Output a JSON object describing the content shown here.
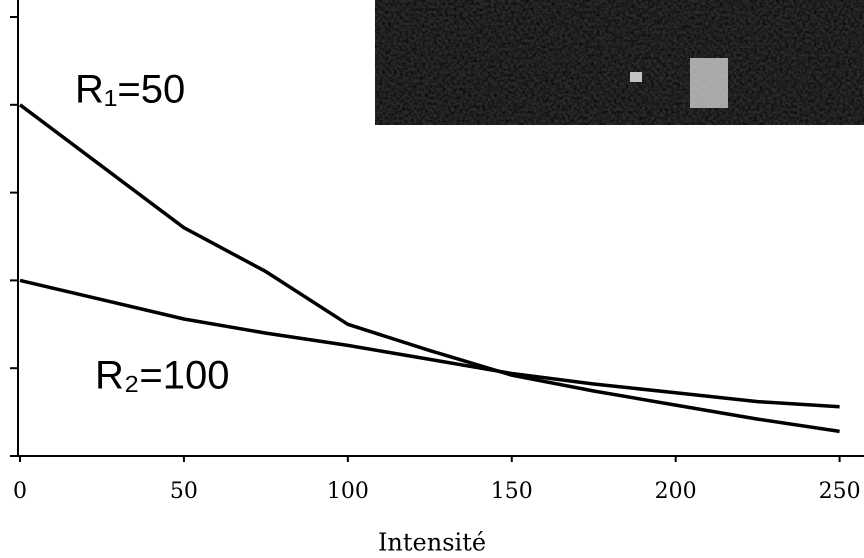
{
  "chart_data": {
    "type": "line",
    "x_label": "Intensité",
    "x": [
      0,
      25,
      50,
      75,
      100,
      125,
      150,
      175,
      200,
      225,
      250
    ],
    "series": [
      {
        "name": "R₁=50",
        "color": "#000000",
        "values": [
          0.02,
          0.0165,
          0.013,
          0.0105,
          0.0075,
          0.006,
          0.0046,
          0.0037,
          0.0029,
          0.0021,
          0.0014
        ]
      },
      {
        "name": "R₂=100",
        "color": "#000000",
        "values": [
          0.01,
          0.0089,
          0.0078,
          0.007,
          0.0063,
          0.0055,
          0.0047,
          0.0041,
          0.0036,
          0.0031,
          0.0028
        ]
      }
    ],
    "xlim": [
      0,
      255
    ],
    "xticks": [
      0,
      50,
      100,
      150,
      200,
      250
    ],
    "ylim": [
      0,
      0.025
    ],
    "yticks": [
      0,
      0.005,
      0.01,
      0.015,
      0.02,
      0.025
    ],
    "grid": false
  }
}
